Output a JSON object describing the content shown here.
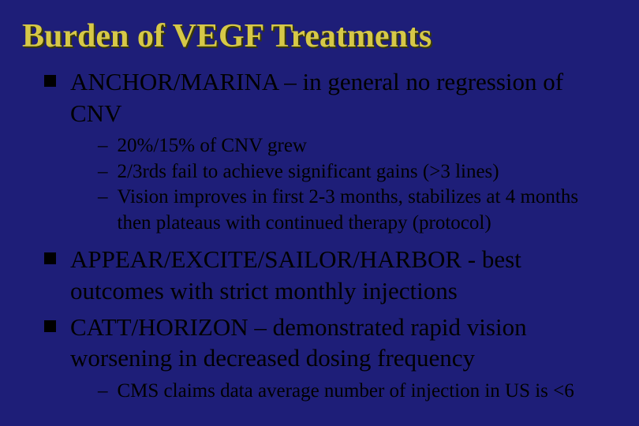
{
  "colors": {
    "background": "#1e1e78",
    "title_color": "#d6c848",
    "title_shadow": "#3a3a00",
    "text_color": "#000000",
    "bullet_square": "#000000"
  },
  "typography": {
    "title_fontsize_pt": 32,
    "level1_fontsize_pt": 23,
    "level2_fontsize_pt": 19,
    "font_family": "Times New Roman"
  },
  "title": "Burden of VEGF Treatments",
  "bullets": {
    "b1": "ANCHOR/MARINA – in general no regression of CNV",
    "b1_sub": {
      "s1": "20%/15%  of CNV grew",
      "s2": "2/3rds fail to achieve significant gains (>3 lines)",
      "s3": "Vision improves in first 2-3 months, stabilizes at 4 months then plateaus with continued therapy (protocol)"
    },
    "b2": "APPEAR/EXCITE/SAILOR/HARBOR  -  best outcomes with strict monthly injections",
    "b3": "CATT/HORIZON – demonstrated rapid vision worsening in decreased dosing frequency",
    "b3_sub": {
      "s1": "CMS claims data average number of injection in US is <6"
    }
  }
}
